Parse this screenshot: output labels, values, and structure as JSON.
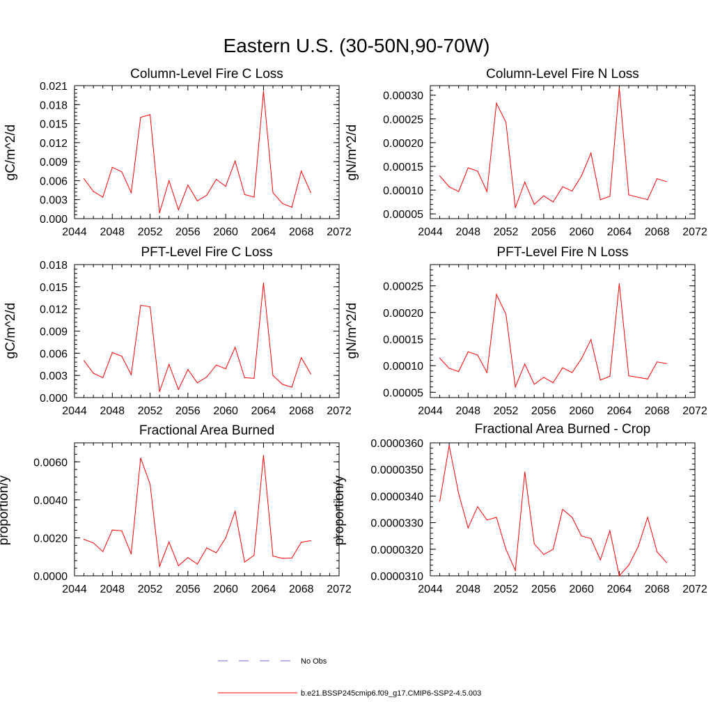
{
  "page": {
    "title": "Eastern U.S. (30-50N,90-70W)"
  },
  "chart_data": [
    {
      "type": "line",
      "title": "Column-Level Fire C Loss",
      "ylabel": "gC/m^2/d",
      "xlim": [
        2044,
        2072
      ],
      "ylim": [
        0,
        0.021
      ],
      "xticks": [
        2044,
        2048,
        2052,
        2056,
        2060,
        2064,
        2068,
        2072
      ],
      "xtick_labels": [
        "2044",
        "2048",
        "2052",
        "2056",
        "2060",
        "2064",
        "2068",
        "2072"
      ],
      "yticks": [
        0,
        0.003,
        0.006,
        0.009,
        0.012,
        0.015,
        0.018,
        0.021
      ],
      "ytick_labels": [
        "0.000",
        "0.003",
        "0.006",
        "0.009",
        "0.012",
        "0.015",
        "0.018",
        "0.021"
      ],
      "x": [
        2045,
        2046,
        2047,
        2048,
        2049,
        2050,
        2051,
        2052,
        2053,
        2054,
        2055,
        2056,
        2057,
        2058,
        2059,
        2060,
        2061,
        2062,
        2063,
        2064,
        2065,
        2066,
        2067,
        2068,
        2069
      ],
      "series": [
        {
          "name": "b.e21.BSSP245cmip6.f09_g17.CMIP6-SSP2-4.5.003",
          "color": "#ff0000",
          "values": [
            0.0063,
            0.0043,
            0.0034,
            0.0081,
            0.0074,
            0.0041,
            0.016,
            0.0164,
            0.0009,
            0.006,
            0.0014,
            0.0053,
            0.0028,
            0.0037,
            0.0062,
            0.0051,
            0.0091,
            0.0038,
            0.0034,
            0.0201,
            0.0041,
            0.0024,
            0.0018,
            0.0075,
            0.0041
          ]
        }
      ]
    },
    {
      "type": "line",
      "title": "Column-Level Fire N Loss",
      "ylabel": "gN/m^2/d",
      "xlim": [
        2044,
        2072
      ],
      "ylim": [
        4e-05,
        0.00032
      ],
      "xticks": [
        2044,
        2048,
        2052,
        2056,
        2060,
        2064,
        2068,
        2072
      ],
      "xtick_labels": [
        "2044",
        "2048",
        "2052",
        "2056",
        "2060",
        "2064",
        "2068",
        "2072"
      ],
      "yticks": [
        5e-05,
        0.0001,
        0.00015,
        0.0002,
        0.00025,
        0.0003
      ],
      "ytick_labels": [
        "0.00005",
        "0.00010",
        "0.00015",
        "0.00020",
        "0.00025",
        "0.00030"
      ],
      "x": [
        2045,
        2046,
        2047,
        2048,
        2049,
        2050,
        2051,
        2052,
        2053,
        2054,
        2055,
        2056,
        2057,
        2058,
        2059,
        2060,
        2061,
        2062,
        2063,
        2064,
        2065,
        2066,
        2067,
        2068,
        2069
      ],
      "series": [
        {
          "name": "b.e21.BSSP245cmip6.f09_g17.CMIP6-SSP2-4.5.003",
          "color": "#ff0000",
          "values": [
            0.00013,
            0.000107,
            9.7e-05,
            0.000147,
            0.00014,
            9.7e-05,
            0.000283,
            0.000243,
            6.3e-05,
            0.000117,
            7e-05,
            8.8e-05,
            7.5e-05,
            0.000107,
            9.8e-05,
            0.00013,
            0.000178,
            8e-05,
            8.7e-05,
            0.000315,
            9e-05,
            8.5e-05,
            8e-05,
            0.000124,
            0.000118
          ]
        }
      ]
    },
    {
      "type": "line",
      "title": "PFT-Level Fire C Loss",
      "ylabel": "gC/m^2/d",
      "xlim": [
        2044,
        2072
      ],
      "ylim": [
        0,
        0.018
      ],
      "xticks": [
        2044,
        2048,
        2052,
        2056,
        2060,
        2064,
        2068,
        2072
      ],
      "xtick_labels": [
        "2044",
        "2048",
        "2052",
        "2056",
        "2060",
        "2064",
        "2068",
        "2072"
      ],
      "yticks": [
        0,
        0.003,
        0.006,
        0.009,
        0.012,
        0.015,
        0.018
      ],
      "ytick_labels": [
        "0.000",
        "0.003",
        "0.006",
        "0.009",
        "0.012",
        "0.015",
        "0.018"
      ],
      "x": [
        2045,
        2046,
        2047,
        2048,
        2049,
        2050,
        2051,
        2052,
        2053,
        2054,
        2055,
        2056,
        2057,
        2058,
        2059,
        2060,
        2061,
        2062,
        2063,
        2064,
        2065,
        2066,
        2067,
        2068,
        2069
      ],
      "series": [
        {
          "name": "b.e21.BSSP245cmip6.f09_g17.CMIP6-SSP2-4.5.003",
          "color": "#ff0000",
          "values": [
            0.005,
            0.0033,
            0.0027,
            0.0061,
            0.0056,
            0.0031,
            0.0125,
            0.0123,
            0.0008,
            0.0045,
            0.0011,
            0.0038,
            0.002,
            0.0028,
            0.0044,
            0.0039,
            0.0068,
            0.0027,
            0.0026,
            0.0155,
            0.003,
            0.0018,
            0.0014,
            0.0054,
            0.0032
          ]
        }
      ]
    },
    {
      "type": "line",
      "title": "PFT-Level Fire N Loss",
      "ylabel": "gN/m^2/d",
      "xlim": [
        2044,
        2072
      ],
      "ylim": [
        4e-05,
        0.00029
      ],
      "xticks": [
        2044,
        2048,
        2052,
        2056,
        2060,
        2064,
        2068,
        2072
      ],
      "xtick_labels": [
        "2044",
        "2048",
        "2052",
        "2056",
        "2060",
        "2064",
        "2068",
        "2072"
      ],
      "yticks": [
        5e-05,
        0.0001,
        0.00015,
        0.0002,
        0.00025
      ],
      "ytick_labels": [
        "0.00005",
        "0.00010",
        "0.00015",
        "0.00020",
        "0.00025"
      ],
      "x": [
        2045,
        2046,
        2047,
        2048,
        2049,
        2050,
        2051,
        2052,
        2053,
        2054,
        2055,
        2056,
        2057,
        2058,
        2059,
        2060,
        2061,
        2062,
        2063,
        2064,
        2065,
        2066,
        2067,
        2068,
        2069
      ],
      "series": [
        {
          "name": "b.e21.BSSP245cmip6.f09_g17.CMIP6-SSP2-4.5.003",
          "color": "#ff0000",
          "values": [
            0.000114,
            9.5e-05,
            8.9e-05,
            0.000126,
            0.00012,
            8.7e-05,
            0.000234,
            0.000197,
            6e-05,
            0.000103,
            6.5e-05,
            7.8e-05,
            6.8e-05,
            9.6e-05,
            8.7e-05,
            0.000113,
            0.000149,
            7.3e-05,
            8e-05,
            0.000254,
            8.1e-05,
            7.8e-05,
            7.5e-05,
            0.000107,
            0.000104
          ]
        }
      ]
    },
    {
      "type": "line",
      "title": "Fractional Area Burned",
      "ylabel": "proportion/y",
      "xlim": [
        2044,
        2072
      ],
      "ylim": [
        0,
        0.007
      ],
      "xticks": [
        2044,
        2048,
        2052,
        2056,
        2060,
        2064,
        2068,
        2072
      ],
      "xtick_labels": [
        "2044",
        "2048",
        "2052",
        "2056",
        "2060",
        "2064",
        "2068",
        "2072"
      ],
      "yticks": [
        0,
        0.002,
        0.004,
        0.006
      ],
      "ytick_labels": [
        "0.0000",
        "0.0020",
        "0.0040",
        "0.0060"
      ],
      "x": [
        2045,
        2046,
        2047,
        2048,
        2049,
        2050,
        2051,
        2052,
        2053,
        2054,
        2055,
        2056,
        2057,
        2058,
        2059,
        2060,
        2061,
        2062,
        2063,
        2064,
        2065,
        2066,
        2067,
        2068,
        2069
      ],
      "series": [
        {
          "name": "b.e21.BSSP245cmip6.f09_g17.CMIP6-SSP2-4.5.003",
          "color": "#ff0000",
          "values": [
            0.00192,
            0.00173,
            0.00128,
            0.00241,
            0.00237,
            0.00115,
            0.0062,
            0.00482,
            0.00049,
            0.00178,
            0.00053,
            0.00096,
            0.00062,
            0.00147,
            0.00121,
            0.00199,
            0.0034,
            0.00073,
            0.00108,
            0.00634,
            0.00104,
            0.00092,
            0.00094,
            0.00177,
            0.00185
          ]
        }
      ]
    },
    {
      "type": "line",
      "title": "Fractional Area Burned - Crop",
      "ylabel": "proportion/y",
      "xlim": [
        2044,
        2072
      ],
      "ylim": [
        3.1e-05,
        3.6e-05
      ],
      "xticks": [
        2044,
        2048,
        2052,
        2056,
        2060,
        2064,
        2068,
        2072
      ],
      "xtick_labels": [
        "2044",
        "2048",
        "2052",
        "2056",
        "2060",
        "2064",
        "2068",
        "2072"
      ],
      "yticks": [
        3.1e-05,
        3.2e-05,
        3.3e-05,
        3.4e-05,
        3.5e-05,
        3.6e-05
      ],
      "ytick_labels": [
        "0.0000310",
        "0.0000320",
        "0.0000330",
        "0.0000340",
        "0.0000350",
        "0.0000360"
      ],
      "x": [
        2045,
        2046,
        2047,
        2048,
        2049,
        2050,
        2051,
        2052,
        2053,
        2054,
        2055,
        2056,
        2057,
        2058,
        2059,
        2060,
        2061,
        2062,
        2063,
        2064,
        2065,
        2066,
        2067,
        2068,
        2069
      ],
      "series": [
        {
          "name": "b.e21.BSSP245cmip6.f09_g17.CMIP6-SSP2-4.5.003",
          "color": "#ff0000",
          "values": [
            3.38e-05,
            3.59e-05,
            3.41e-05,
            3.28e-05,
            3.36e-05,
            3.31e-05,
            3.32e-05,
            3.2e-05,
            3.12e-05,
            3.49e-05,
            3.22e-05,
            3.18e-05,
            3.2e-05,
            3.35e-05,
            3.32e-05,
            3.25e-05,
            3.24e-05,
            3.16e-05,
            3.27e-05,
            3.1e-05,
            3.14e-05,
            3.21e-05,
            3.32e-05,
            3.19e-05,
            3.15e-05
          ]
        }
      ]
    }
  ],
  "legend": {
    "entries": [
      {
        "label": "No Obs",
        "color": "#6b6bd6",
        "style": "dashed"
      },
      {
        "label": "b.e21.BSSP245cmip6.f09_g17.CMIP6-SSP2-4.5.003",
        "color": "#ff0000",
        "style": "solid"
      }
    ]
  }
}
